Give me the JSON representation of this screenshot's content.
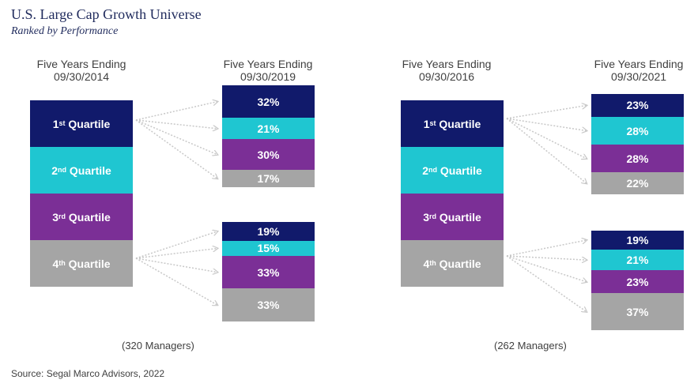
{
  "title": "U.S. Large Cap Growth Universe",
  "subtitle": "Ranked by Performance",
  "source": "Source: Segal Marco Advisors, 2022",
  "colors": {
    "q1": "#111a6b",
    "q2": "#1fc6d1",
    "q3": "#7b2f96",
    "q4": "#a5a5a5",
    "arrow": "#c8c8c8"
  },
  "quartile_labels": [
    {
      "num": "1",
      "sup": "st",
      "word": "Quartile"
    },
    {
      "num": "2",
      "sup": "nd",
      "word": "Quartile"
    },
    {
      "num": "3",
      "sup": "rd",
      "word": "Quartile"
    },
    {
      "num": "4",
      "sup": "th",
      "word": "Quartile"
    }
  ],
  "panels": [
    {
      "start_heading": [
        "Five Years Ending",
        "09/30/2014"
      ],
      "end_heading": [
        "Five Years Ending",
        "09/30/2019"
      ],
      "managers": "(320 Managers)"
    },
    {
      "start_heading": [
        "Five Years Ending",
        "09/30/2016"
      ],
      "end_heading": [
        "Five Years Ending",
        "09/30/2021"
      ],
      "managers": "(262 Managers)"
    }
  ],
  "chart_data": [
    {
      "type": "bar",
      "title": "U.S. Large Cap Growth Universe",
      "start_period": "Five Years Ending 09/30/2014",
      "end_period": "Five Years Ending 09/30/2019",
      "categories": [
        "1st Quartile",
        "2nd Quartile",
        "3rd Quartile",
        "4th Quartile"
      ],
      "series": [
        {
          "name": "1st Quartile",
          "values": [
            32,
            21,
            30,
            17
          ],
          "labels": [
            "32%",
            "21%",
            "30%",
            "17%"
          ]
        },
        {
          "name": "4th Quartile",
          "values": [
            19,
            15,
            33,
            33
          ],
          "labels": [
            "19%",
            "15%",
            "33%",
            "33%"
          ]
        }
      ]
    },
    {
      "type": "bar",
      "title": "U.S. Large Cap Growth Universe",
      "start_period": "Five Years Ending 09/30/2016",
      "end_period": "Five Years Ending 09/30/2021",
      "categories": [
        "1st Quartile",
        "2nd Quartile",
        "3rd Quartile",
        "4th Quartile"
      ],
      "series": [
        {
          "name": "1st Quartile",
          "values": [
            23,
            28,
            28,
            22
          ],
          "labels": [
            "23%",
            "28%",
            "28%",
            "22%"
          ]
        },
        {
          "name": "4th Quartile",
          "values": [
            19,
            21,
            23,
            37
          ],
          "labels": [
            "19%",
            "21%",
            "23%",
            "37%"
          ]
        }
      ]
    }
  ]
}
